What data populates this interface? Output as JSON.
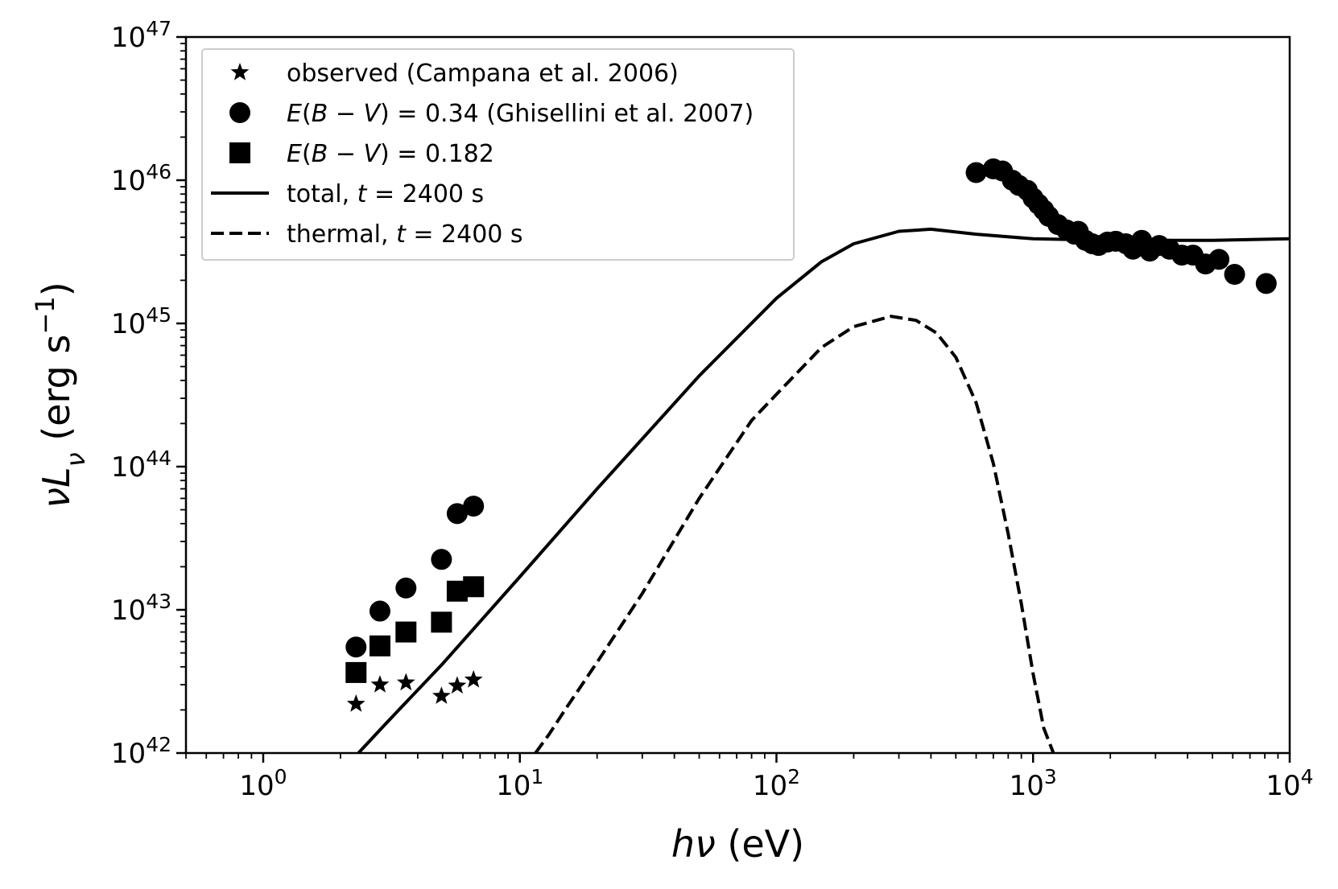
{
  "chart_data": {
    "type": "scatter",
    "title": "",
    "xlabel": "hν (eV)",
    "ylabel": "νL_ν (erg s⁻¹)",
    "xscale": "log",
    "yscale": "log",
    "xlim": [
      0.5,
      10000
    ],
    "ylim": [
      1e+42,
      1e+47
    ],
    "legend_position": "top-left",
    "x_tick_labels": [
      {
        "value": 1,
        "base": "10",
        "exp": "0"
      },
      {
        "value": 10,
        "base": "10",
        "exp": "1"
      },
      {
        "value": 100,
        "base": "10",
        "exp": "2"
      },
      {
        "value": 1000,
        "base": "10",
        "exp": "3"
      },
      {
        "value": 10000,
        "base": "10",
        "exp": "4"
      }
    ],
    "y_tick_labels": [
      {
        "value": 1e+42,
        "base": "10",
        "exp": "42"
      },
      {
        "value": 1e+43,
        "base": "10",
        "exp": "43"
      },
      {
        "value": 1e+44,
        "base": "10",
        "exp": "44"
      },
      {
        "value": 1e+45,
        "base": "10",
        "exp": "45"
      },
      {
        "value": 1e+46,
        "base": "10",
        "exp": "46"
      },
      {
        "value": 1e+47,
        "base": "10",
        "exp": "47"
      }
    ],
    "series": [
      {
        "name": "observed (Campana et al. 2006)",
        "marker": "star",
        "points": [
          [
            2.3,
            2.2e+42
          ],
          [
            2.85,
            3e+42
          ],
          [
            3.6,
            3.1e+42
          ],
          [
            4.95,
            2.5e+42
          ],
          [
            5.7,
            2.95e+42
          ],
          [
            6.6,
            3.25e+42
          ]
        ]
      },
      {
        "name": "E(B − V) = 0.34 (Ghisellini et al. 2007)",
        "marker": "circle",
        "points": [
          [
            2.3,
            5.5e+42
          ],
          [
            2.85,
            9.8e+42
          ],
          [
            3.6,
            1.42e+43
          ],
          [
            4.95,
            2.25e+43
          ],
          [
            5.7,
            4.7e+43
          ],
          [
            6.6,
            5.3e+43
          ],
          [
            600,
            1.13e+46
          ],
          [
            700,
            1.2e+46
          ],
          [
            760,
            1.16e+46
          ],
          [
            830,
            1e+46
          ],
          [
            880,
            9.2e+45
          ],
          [
            950,
            8.5e+45
          ],
          [
            1000,
            7.5e+45
          ],
          [
            1050,
            6.8e+45
          ],
          [
            1100,
            6.2e+45
          ],
          [
            1150,
            5.6e+45
          ],
          [
            1250,
            4.9e+45
          ],
          [
            1350,
            4.5e+45
          ],
          [
            1450,
            4.2e+45
          ],
          [
            1500,
            4.4e+45
          ],
          [
            1600,
            3.8e+45
          ],
          [
            1700,
            3.6e+45
          ],
          [
            1800,
            3.5e+45
          ],
          [
            1950,
            3.7e+45
          ],
          [
            2100,
            3.75e+45
          ],
          [
            2300,
            3.6e+45
          ],
          [
            2450,
            3.3e+45
          ],
          [
            2650,
            3.8e+45
          ],
          [
            2850,
            3.2e+45
          ],
          [
            3100,
            3.5e+45
          ],
          [
            3400,
            3.3e+45
          ],
          [
            3800,
            3e+45
          ],
          [
            4200,
            3e+45
          ],
          [
            4700,
            2.6e+45
          ],
          [
            5300,
            2.8e+45
          ],
          [
            6100,
            2.2e+45
          ],
          [
            8100,
            1.9e+45
          ]
        ]
      },
      {
        "name": "E(B − V) = 0.182",
        "marker": "square",
        "points": [
          [
            2.3,
            3.65e+42
          ],
          [
            2.85,
            5.6e+42
          ],
          [
            3.6,
            7e+42
          ],
          [
            4.95,
            8.2e+42
          ],
          [
            5.7,
            1.35e+43
          ],
          [
            6.6,
            1.45e+43
          ]
        ]
      },
      {
        "name": "total, t = 2400 s",
        "line": "solid",
        "points": [
          [
            2.35,
            1e+42
          ],
          [
            3,
            1.6e+42
          ],
          [
            5,
            4.2e+42
          ],
          [
            10,
            1.7e+43
          ],
          [
            20,
            7e+43
          ],
          [
            50,
            4.3e+44
          ],
          [
            100,
            1.5e+45
          ],
          [
            150,
            2.7e+45
          ],
          [
            200,
            3.6e+45
          ],
          [
            300,
            4.4e+45
          ],
          [
            400,
            4.55e+45
          ],
          [
            600,
            4.2e+45
          ],
          [
            1000,
            3.9e+45
          ],
          [
            2000,
            3.8e+45
          ],
          [
            5000,
            3.8e+45
          ],
          [
            10000,
            3.9e+45
          ]
        ]
      },
      {
        "name": "thermal, t = 2400 s",
        "line": "dashed",
        "points": [
          [
            11.5,
            1e+42
          ],
          [
            13,
            1.35e+42
          ],
          [
            15,
            2e+42
          ],
          [
            20,
            4.3e+42
          ],
          [
            30,
            1.3e+43
          ],
          [
            50,
            6e+43
          ],
          [
            80,
            2.1e+44
          ],
          [
            100,
            3.2e+44
          ],
          [
            150,
            6.8e+44
          ],
          [
            200,
            9.5e+44
          ],
          [
            280,
            1.12e+45
          ],
          [
            350,
            1.05e+45
          ],
          [
            420,
            8.6e+44
          ],
          [
            500,
            5.8e+44
          ],
          [
            600,
            2.8e+44
          ],
          [
            700,
            1.05e+44
          ],
          [
            800,
            3.4e+43
          ],
          [
            900,
            1.1e+43
          ],
          [
            1000,
            3.6e+42
          ],
          [
            1100,
            1.5e+42
          ],
          [
            1200,
            1e+42
          ]
        ]
      }
    ],
    "legend": {
      "entries": [
        {
          "marker": "star",
          "parts": [
            {
              "t": "observed (Campana et al. 2006)",
              "i": false
            }
          ]
        },
        {
          "marker": "circle",
          "parts": [
            {
              "t": "E",
              "i": true
            },
            {
              "t": "(",
              "i": false
            },
            {
              "t": "B",
              "i": true
            },
            {
              "t": " − ",
              "i": false
            },
            {
              "t": "V",
              "i": true
            },
            {
              "t": ") = 0.34 (Ghisellini et al. 2007)",
              "i": false
            }
          ]
        },
        {
          "marker": "square",
          "parts": [
            {
              "t": "E",
              "i": true
            },
            {
              "t": "(",
              "i": false
            },
            {
              "t": "B",
              "i": true
            },
            {
              "t": " − ",
              "i": false
            },
            {
              "t": "V",
              "i": true
            },
            {
              "t": ") = 0.182",
              "i": false
            }
          ]
        },
        {
          "line": "solid",
          "parts": [
            {
              "t": "total, ",
              "i": false
            },
            {
              "t": "t",
              "i": true
            },
            {
              "t": " = 2400 s",
              "i": false
            }
          ]
        },
        {
          "line": "dashed",
          "parts": [
            {
              "t": "thermal, ",
              "i": false
            },
            {
              "t": "t",
              "i": true
            },
            {
              "t": " = 2400 s",
              "i": false
            }
          ]
        }
      ]
    },
    "axis_titles": {
      "x_parts": [
        {
          "t": "hν",
          "i": true
        },
        {
          "t": " (eV)",
          "i": false
        }
      ],
      "y_parts": [
        {
          "t": "νL",
          "i": true
        },
        {
          "t": "ν",
          "i": true,
          "sub": true
        },
        {
          "t": " (erg s",
          "i": false
        },
        {
          "t": "−1",
          "i": false,
          "sup": true
        },
        {
          "t": ")",
          "i": false
        }
      ]
    },
    "colors": {
      "ink": "#000000",
      "background": "#ffffff",
      "legend_border": "#cccccc"
    }
  }
}
